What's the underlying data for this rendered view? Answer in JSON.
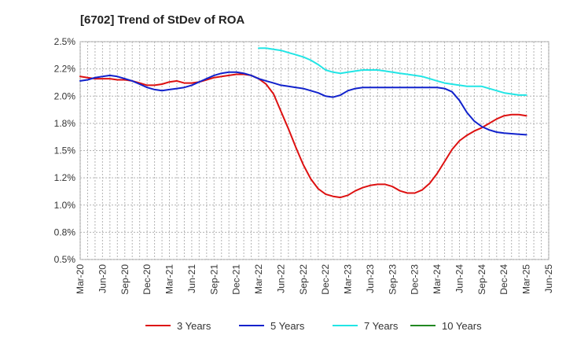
{
  "chart_data": {
    "type": "line",
    "title": "[6702]  Trend of StDev of ROA",
    "xlabel": "",
    "ylabel": "",
    "ylim": [
      0.5,
      2.5
    ],
    "y_ticks": [
      "2.5%",
      "2.2%",
      "2.0%",
      "1.8%",
      "1.5%",
      "1.2%",
      "1.0%",
      "0.8%",
      "0.5%"
    ],
    "x_ticks": [
      "Mar-20",
      "Jun-20",
      "Sep-20",
      "Dec-20",
      "Mar-21",
      "Jun-21",
      "Sep-21",
      "Dec-21",
      "Mar-22",
      "Jun-22",
      "Sep-22",
      "Dec-22",
      "Mar-23",
      "Jun-23",
      "Sep-23",
      "Dec-23",
      "Mar-24",
      "Jun-24",
      "Sep-24",
      "Dec-24",
      "Mar-25",
      "Jun-25"
    ],
    "grid": true,
    "legend_position": "bottom",
    "series": [
      {
        "name": "3 Years",
        "color": "#dd1111",
        "x": [
          "Mar-20",
          "Apr-20",
          "May-20",
          "Jun-20",
          "Jul-20",
          "Aug-20",
          "Sep-20",
          "Oct-20",
          "Nov-20",
          "Dec-20",
          "Jan-21",
          "Feb-21",
          "Mar-21",
          "Apr-21",
          "May-21",
          "Jun-21",
          "Jul-21",
          "Aug-21",
          "Sep-21",
          "Oct-21",
          "Nov-21",
          "Dec-21",
          "Jan-22",
          "Feb-22",
          "Mar-22",
          "Apr-22",
          "May-22",
          "Jun-22",
          "Jul-22",
          "Aug-22",
          "Sep-22",
          "Oct-22",
          "Nov-22",
          "Dec-22",
          "Jan-23",
          "Feb-23",
          "Mar-23",
          "Apr-23",
          "May-23",
          "Jun-23",
          "Jul-23",
          "Aug-23",
          "Sep-23",
          "Oct-23",
          "Nov-23",
          "Dec-23",
          "Jan-24",
          "Feb-24",
          "Mar-24",
          "Apr-24",
          "May-24",
          "Jun-24",
          "Jul-24",
          "Aug-24",
          "Sep-24",
          "Oct-24",
          "Nov-24",
          "Dec-24",
          "Jan-25",
          "Feb-25",
          "Mar-25"
        ],
        "values": [
          2.18,
          2.17,
          2.16,
          2.16,
          2.16,
          2.15,
          2.15,
          2.14,
          2.12,
          2.1,
          2.1,
          2.11,
          2.13,
          2.14,
          2.12,
          2.12,
          2.13,
          2.15,
          2.17,
          2.18,
          2.19,
          2.2,
          2.2,
          2.19,
          2.16,
          2.11,
          2.02,
          1.86,
          1.7,
          1.53,
          1.37,
          1.24,
          1.15,
          1.1,
          1.08,
          1.07,
          1.09,
          1.13,
          1.16,
          1.18,
          1.19,
          1.19,
          1.17,
          1.13,
          1.11,
          1.11,
          1.14,
          1.2,
          1.29,
          1.4,
          1.51,
          1.59,
          1.64,
          1.68,
          1.71,
          1.75,
          1.79,
          1.82,
          1.83,
          1.83,
          1.82
        ]
      },
      {
        "name": "5 Years",
        "color": "#1122cc",
        "x": [
          "Mar-20",
          "Apr-20",
          "May-20",
          "Jun-20",
          "Jul-20",
          "Aug-20",
          "Sep-20",
          "Oct-20",
          "Nov-20",
          "Dec-20",
          "Jan-21",
          "Feb-21",
          "Mar-21",
          "Apr-21",
          "May-21",
          "Jun-21",
          "Jul-21",
          "Aug-21",
          "Sep-21",
          "Oct-21",
          "Nov-21",
          "Dec-21",
          "Jan-22",
          "Feb-22",
          "Mar-22",
          "Apr-22",
          "May-22",
          "Jun-22",
          "Jul-22",
          "Aug-22",
          "Sep-22",
          "Oct-22",
          "Nov-22",
          "Dec-22",
          "Jan-23",
          "Feb-23",
          "Mar-23",
          "Apr-23",
          "May-23",
          "Jun-23",
          "Jul-23",
          "Aug-23",
          "Sep-23",
          "Oct-23",
          "Nov-23",
          "Dec-23",
          "Jan-24",
          "Feb-24",
          "Mar-24",
          "Apr-24",
          "May-24",
          "Jun-24",
          "Jul-24",
          "Aug-24",
          "Sep-24",
          "Oct-24",
          "Nov-24",
          "Dec-24",
          "Jan-25",
          "Feb-25",
          "Mar-25"
        ],
        "values": [
          2.14,
          2.15,
          2.17,
          2.18,
          2.19,
          2.18,
          2.16,
          2.14,
          2.11,
          2.08,
          2.06,
          2.05,
          2.06,
          2.07,
          2.08,
          2.1,
          2.13,
          2.16,
          2.19,
          2.21,
          2.22,
          2.22,
          2.21,
          2.19,
          2.16,
          2.14,
          2.12,
          2.1,
          2.09,
          2.08,
          2.07,
          2.05,
          2.03,
          2.0,
          1.99,
          2.01,
          2.05,
          2.07,
          2.08,
          2.08,
          2.08,
          2.08,
          2.08,
          2.08,
          2.08,
          2.08,
          2.08,
          2.08,
          2.08,
          2.07,
          2.04,
          1.96,
          1.85,
          1.77,
          1.72,
          1.69,
          1.67,
          1.66,
          1.655,
          1.65,
          1.645
        ]
      },
      {
        "name": "7 Years",
        "color": "#22e5e5",
        "x": [
          "Mar-22",
          "Apr-22",
          "May-22",
          "Jun-22",
          "Jul-22",
          "Aug-22",
          "Sep-22",
          "Oct-22",
          "Nov-22",
          "Dec-22",
          "Jan-23",
          "Feb-23",
          "Mar-23",
          "Apr-23",
          "May-23",
          "Jun-23",
          "Jul-23",
          "Aug-23",
          "Sep-23",
          "Oct-23",
          "Nov-23",
          "Dec-23",
          "Jan-24",
          "Feb-24",
          "Mar-24",
          "Apr-24",
          "May-24",
          "Jun-24",
          "Jul-24",
          "Aug-24",
          "Sep-24",
          "Oct-24",
          "Nov-24",
          "Dec-24",
          "Jan-25",
          "Feb-25",
          "Mar-25"
        ],
        "values": [
          2.44,
          2.44,
          2.43,
          2.42,
          2.4,
          2.38,
          2.36,
          2.33,
          2.29,
          2.24,
          2.22,
          2.21,
          2.22,
          2.23,
          2.24,
          2.24,
          2.24,
          2.23,
          2.22,
          2.21,
          2.2,
          2.19,
          2.18,
          2.16,
          2.14,
          2.12,
          2.11,
          2.1,
          2.09,
          2.09,
          2.09,
          2.07,
          2.05,
          2.03,
          2.02,
          2.01,
          2.01
        ]
      },
      {
        "name": "10 Years",
        "color": "#228822",
        "x": [],
        "values": []
      }
    ]
  }
}
